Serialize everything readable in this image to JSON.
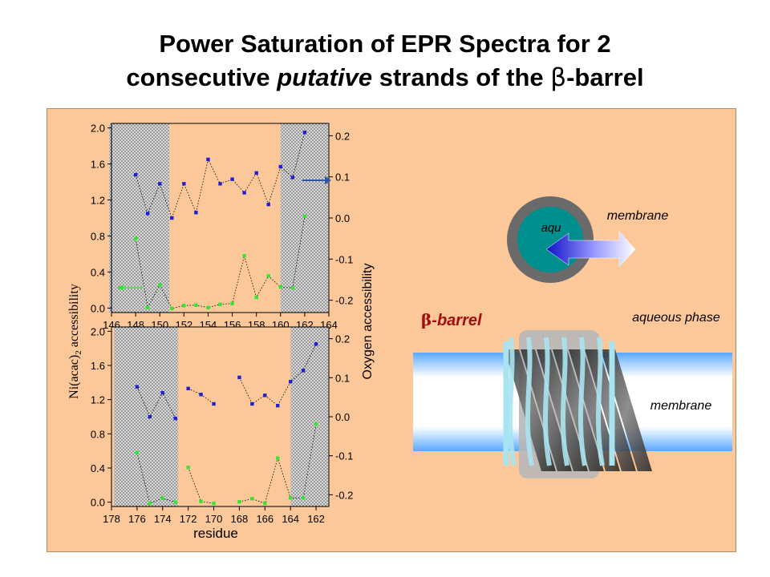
{
  "title": {
    "line1": "Power Saturation of EPR Spectra for 2",
    "line2_pre": "consecutive ",
    "line2_italic": "putative",
    "line2_post": " strands of the ",
    "beta": "β",
    "line2_tail": "-barrel"
  },
  "colors": {
    "panel_bg": "#fcc899",
    "ni_series": "#1f1fd6",
    "oxygen_series": "#33e633",
    "membrane_band": "#7fbfff",
    "barrel": "#9fd6e8"
  },
  "axis_labels": {
    "left_pre": "Ni(acac)",
    "left_sub": "2",
    "left_post": " accessibility",
    "right": "Oxygen accessibility",
    "bottom": "residue"
  },
  "chart_data": [
    {
      "type": "scatter",
      "x_ticks": [
        "146",
        "148",
        "150",
        "152",
        "154",
        "156",
        "158",
        "160",
        "162",
        "164"
      ],
      "x_range": [
        146,
        164
      ],
      "y_left_range": [
        -0.05,
        2.05
      ],
      "y_left_ticks": [
        "0.0",
        "0.4",
        "0.8",
        "1.2",
        "1.6",
        "2.0"
      ],
      "y_right_range": [
        -0.23,
        0.23
      ],
      "y_right_ticks": [
        "-0.2",
        "-0.1",
        "0.0",
        "0.1",
        "0.2"
      ],
      "shaded_x_ranges": [
        [
          145.8,
          150.8
        ],
        [
          160.0,
          164.0
        ]
      ],
      "series": [
        {
          "axis": "left",
          "color": "#1f1fd6",
          "x": [
            148,
            149,
            150,
            151,
            152,
            153,
            154,
            155,
            156,
            157,
            158,
            159,
            160,
            161,
            162
          ],
          "y": [
            1.48,
            1.05,
            1.38,
            1.0,
            1.38,
            1.06,
            1.65,
            1.38,
            1.43,
            1.28,
            1.5,
            1.15,
            1.57,
            1.45,
            1.95
          ]
        },
        {
          "axis": "right",
          "color": "#33e633",
          "x": [
            148,
            149,
            150,
            151,
            152,
            153,
            154,
            155,
            156,
            157,
            158,
            159,
            160,
            161,
            162
          ],
          "y": [
            -0.05,
            -0.218,
            -0.163,
            -0.22,
            -0.213,
            -0.212,
            -0.218,
            -0.21,
            -0.208,
            -0.092,
            -0.193,
            -0.141,
            -0.168,
            -0.17,
            0.004
          ]
        }
      ]
    },
    {
      "type": "scatter",
      "x_ticks": [
        "178",
        "176",
        "174",
        "172",
        "170",
        "168",
        "166",
        "164",
        "162"
      ],
      "x_range": [
        178,
        161
      ],
      "y_left_range": [
        -0.05,
        2.05
      ],
      "y_left_ticks": [
        "0.0",
        "0.4",
        "0.8",
        "1.2",
        "1.6",
        "2.0"
      ],
      "y_right_range": [
        -0.23,
        0.23
      ],
      "y_right_ticks": [
        "-0.2",
        "-0.1",
        "0.0",
        "0.1",
        "0.2"
      ],
      "shaded_x_ranges": [
        [
          177.8,
          172.8
        ],
        [
          164.0,
          161.0
        ]
      ],
      "series": [
        {
          "axis": "left",
          "color": "#1f1fd6",
          "segments": [
            {
              "x": [
                176,
                175,
                174,
                173
              ],
              "y": [
                1.35,
                1.0,
                1.28,
                0.98
              ]
            },
            {
              "x": [
                172,
                171,
                170
              ],
              "y": [
                1.33,
                1.26,
                1.15
              ]
            },
            {
              "x": [
                168,
                167,
                166,
                165,
                164,
                163,
                162
              ],
              "y": [
                1.46,
                1.15,
                1.25,
                1.13,
                1.41,
                1.54,
                1.85
              ]
            }
          ]
        },
        {
          "axis": "right",
          "color": "#33e633",
          "segments": [
            {
              "x": [
                176,
                175,
                174,
                173
              ],
              "y": [
                -0.092,
                -0.222,
                -0.209,
                -0.219
              ]
            },
            {
              "x": [
                172,
                171,
                170
              ],
              "y": [
                -0.13,
                -0.217,
                -0.222
              ]
            },
            {
              "x": [
                168,
                167,
                166,
                165,
                164,
                163,
                162
              ],
              "y": [
                -0.218,
                -0.21,
                -0.222,
                -0.106,
                -0.208,
                -0.208,
                -0.019
              ]
            }
          ]
        }
      ]
    }
  ],
  "diagram": {
    "aqu_label": "aqu",
    "membrane_top_label": "membrane",
    "barrel_label_beta": "β",
    "barrel_label_rest": "-barrel",
    "aqueous_phase_label": "aqueous phase",
    "membrane_band_label": "membrane"
  }
}
